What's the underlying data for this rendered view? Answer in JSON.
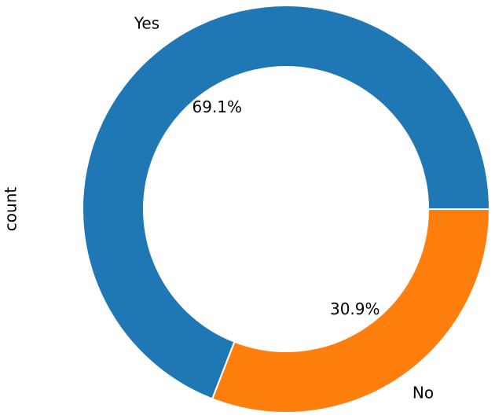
{
  "chart_data": {
    "type": "pie",
    "ylabel": "count",
    "categories": [
      "Yes",
      "No"
    ],
    "values": [
      69.1,
      30.9
    ],
    "value_labels": [
      "69.1%",
      "30.9%"
    ],
    "colors": [
      "#1f77b4",
      "#ff7f0e"
    ],
    "donut": true
  }
}
